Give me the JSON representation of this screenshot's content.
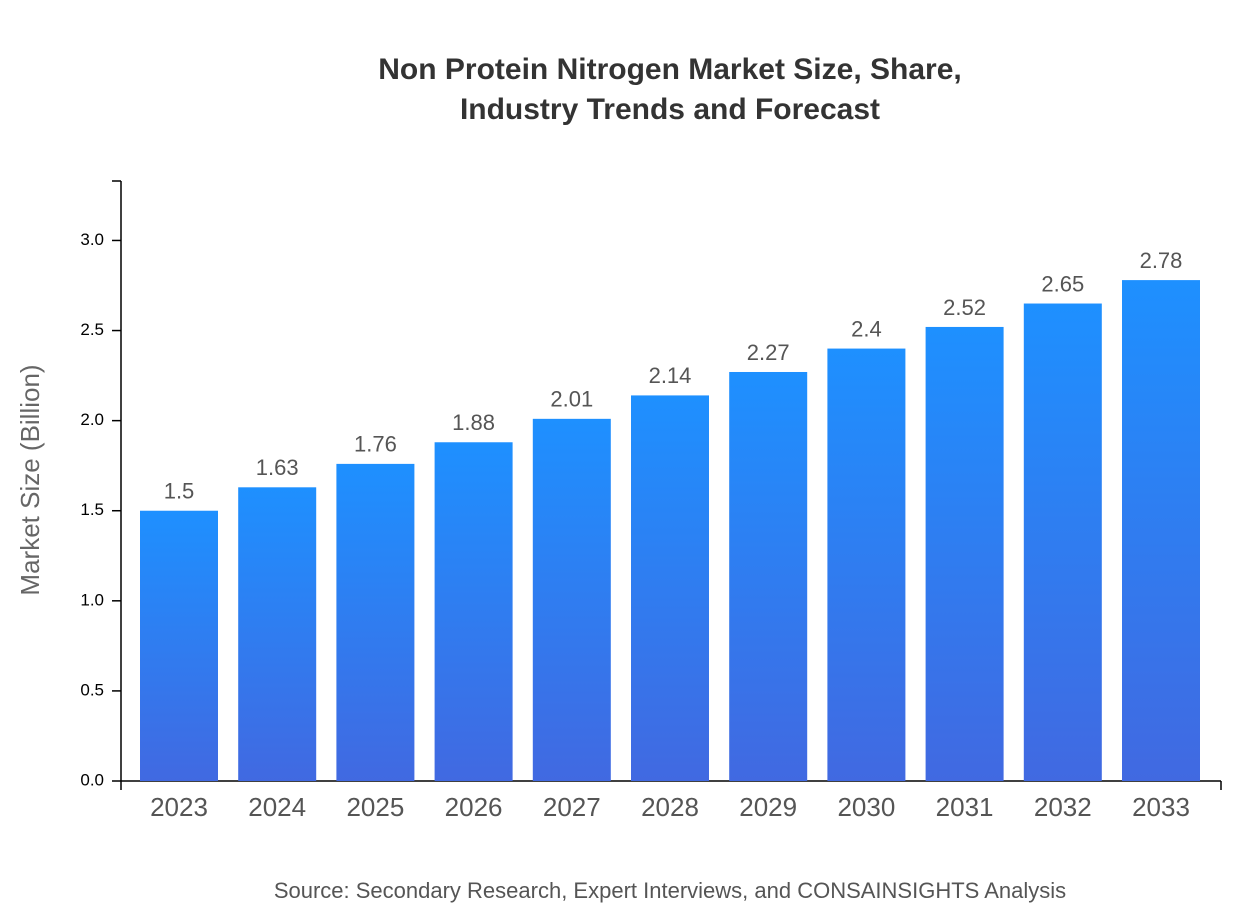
{
  "chart_data": {
    "type": "bar",
    "title": "Non Protein Nitrogen Market Size, Share, Industry Trends and Forecast",
    "y_label": "Market Size (Billion)",
    "source": "Source: Secondary Research, Expert Interviews, and CONSAINSIGHTS Analysis",
    "categories": [
      "2023",
      "2024",
      "2025",
      "2026",
      "2027",
      "2028",
      "2029",
      "2030",
      "2031",
      "2032",
      "2033"
    ],
    "values": [
      1.5,
      1.63,
      1.76,
      1.88,
      2.01,
      2.14,
      2.27,
      2.4,
      2.52,
      2.65,
      2.78
    ],
    "color": [
      "#1e90ff",
      "#4169e1"
    ],
    "ylim": [
      0,
      3.33
    ],
    "yticks": [
      {
        "value": 0,
        "label": "0.0"
      },
      {
        "value": 0.5,
        "label": "0.5"
      },
      {
        "value": 1,
        "label": "1.0"
      },
      {
        "value": 1.5,
        "label": "1.5"
      },
      {
        "value": 2,
        "label": "2.0"
      },
      {
        "value": 2.5,
        "label": "2.5"
      },
      {
        "value": 3,
        "label": "3.0"
      }
    ]
  }
}
